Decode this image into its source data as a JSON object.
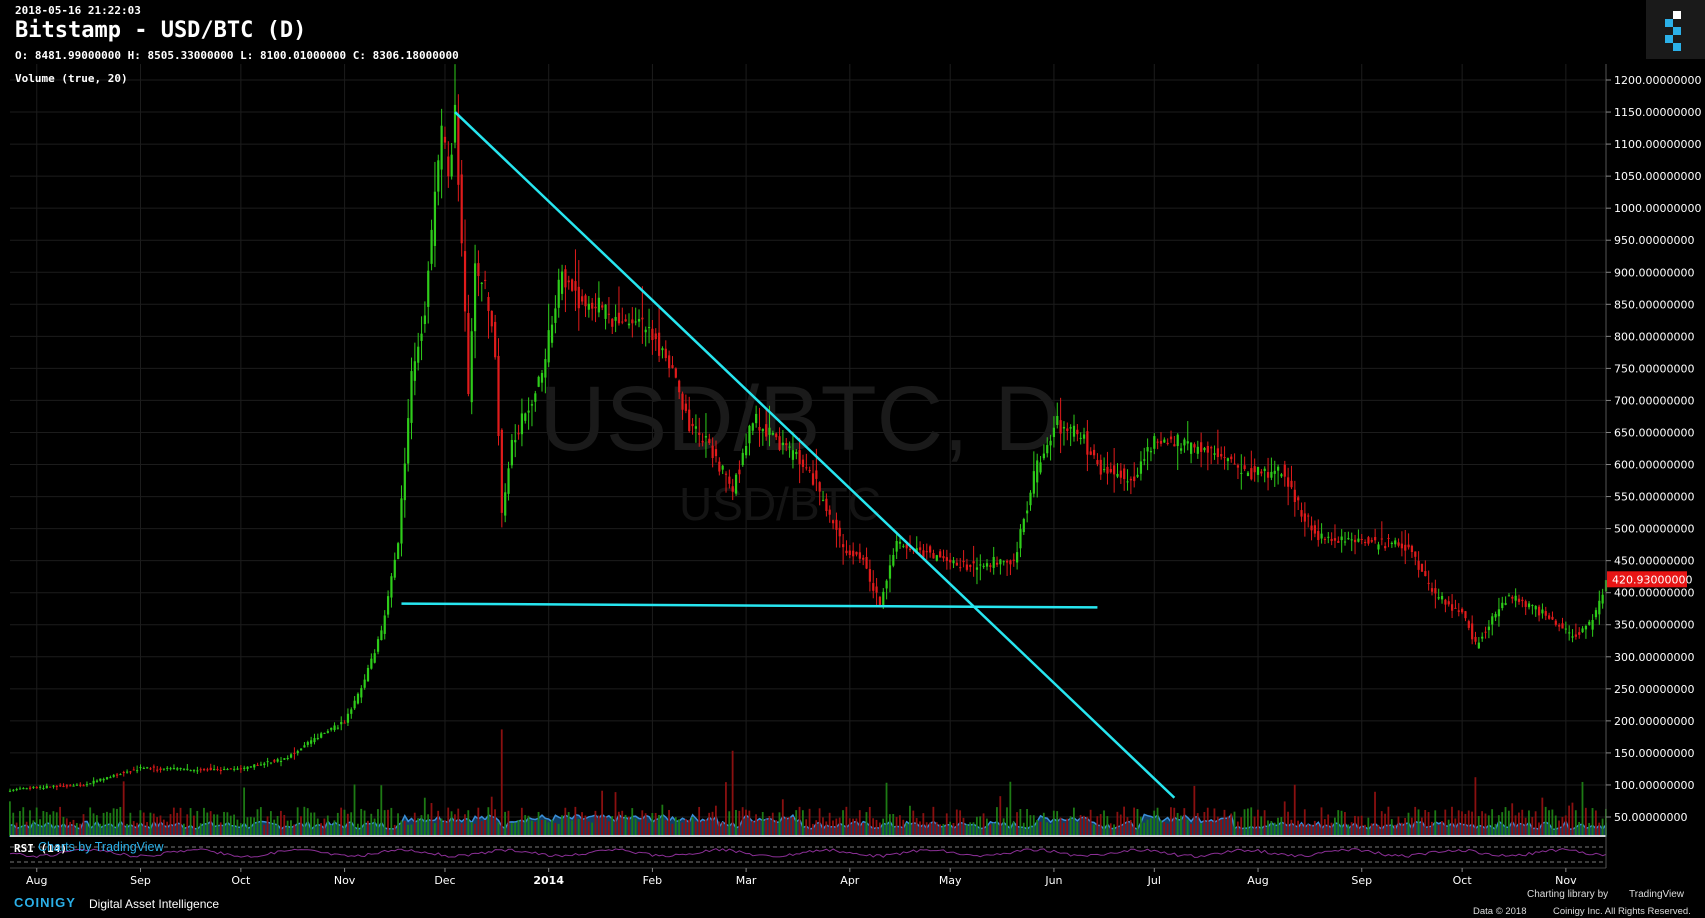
{
  "header": {
    "timestamp": "2018-05-16 21:22:03",
    "title": "Bitstamp - USD/BTC (D)",
    "ohlc": "O: 8481.99000000 H: 8505.33000000 L: 8100.01000000 C: 8306.18000000",
    "volume_label": "Volume (true, 20)"
  },
  "watermark": {
    "main": "USD/BTC, D",
    "sub": "USD/BTC"
  },
  "rsi": {
    "label": "RSI (14)"
  },
  "footer": {
    "charts_by": "Charts by TradingView",
    "brand": "COINIGY",
    "tagline": "Digital Asset Intelligence",
    "charting_library_by": "Charting library by",
    "tradingview": "TradingView",
    "copyright_left": "Data © 2018",
    "copyright_right": "Coinigy Inc. All Rights Reserved."
  },
  "colors": {
    "up": "#2ecc1a",
    "down": "#e01b1b",
    "trendline": "#27e6f0",
    "volume_area": "#1f6fb5",
    "price_tag": "#e81515",
    "background": "#000000"
  },
  "chart_data": {
    "type": "candlestick",
    "title": "Bitstamp - USD/BTC (D)",
    "price_axis": {
      "ticks": [
        "1200.00000000",
        "1150.00000000",
        "1100.00000000",
        "1050.00000000",
        "1000.00000000",
        "950.00000000",
        "900.00000000",
        "850.00000000",
        "800.00000000",
        "750.00000000",
        "700.00000000",
        "650.00000000",
        "600.00000000",
        "550.00000000",
        "500.00000000",
        "450.00000000",
        "400.00000000",
        "350.00000000",
        "300.00000000",
        "250.00000000",
        "200.00000000",
        "150.00000000",
        "100.00000000",
        "50.00000000"
      ],
      "range": [
        50,
        1200
      ]
    },
    "last_price_tag": "420.93000000",
    "time_axis": {
      "ticks": [
        "Aug",
        "Sep",
        "Oct",
        "Nov",
        "Dec",
        "2014",
        "Feb",
        "Mar",
        "Apr",
        "May",
        "Jun",
        "Jul",
        "Aug",
        "Sep",
        "Oct",
        "Nov"
      ],
      "range": [
        "2013-07-24",
        "2014-11-13"
      ]
    },
    "closes": [
      {
        "date": "2013-07-24",
        "close": 92
      },
      {
        "date": "2013-08-01",
        "close": 96
      },
      {
        "date": "2013-08-15",
        "close": 100
      },
      {
        "date": "2013-09-01",
        "close": 127
      },
      {
        "date": "2013-09-15",
        "close": 124
      },
      {
        "date": "2013-10-01",
        "close": 125
      },
      {
        "date": "2013-10-15",
        "close": 143
      },
      {
        "date": "2013-10-25",
        "close": 180
      },
      {
        "date": "2013-11-01",
        "close": 198
      },
      {
        "date": "2013-11-06",
        "close": 250
      },
      {
        "date": "2013-11-12",
        "close": 340
      },
      {
        "date": "2013-11-17",
        "close": 480
      },
      {
        "date": "2013-11-21",
        "close": 740
      },
      {
        "date": "2013-11-25",
        "close": 840
      },
      {
        "date": "2013-11-28",
        "close": 1020
      },
      {
        "date": "2013-11-30",
        "close": 1120
      },
      {
        "date": "2013-12-02",
        "close": 1050
      },
      {
        "date": "2013-12-04",
        "close": 1140
      },
      {
        "date": "2013-12-06",
        "close": 950
      },
      {
        "date": "2013-12-08",
        "close": 700
      },
      {
        "date": "2013-12-10",
        "close": 900
      },
      {
        "date": "2013-12-13",
        "close": 880
      },
      {
        "date": "2013-12-16",
        "close": 780
      },
      {
        "date": "2013-12-18",
        "close": 520
      },
      {
        "date": "2013-12-21",
        "close": 630
      },
      {
        "date": "2013-12-25",
        "close": 680
      },
      {
        "date": "2013-12-30",
        "close": 740
      },
      {
        "date": "2014-01-05",
        "close": 900
      },
      {
        "date": "2014-01-10",
        "close": 860
      },
      {
        "date": "2014-01-20",
        "close": 830
      },
      {
        "date": "2014-01-31",
        "close": 810
      },
      {
        "date": "2014-02-06",
        "close": 760
      },
      {
        "date": "2014-02-12",
        "close": 660
      },
      {
        "date": "2014-02-18",
        "close": 630
      },
      {
        "date": "2014-02-25",
        "close": 560
      },
      {
        "date": "2014-03-03",
        "close": 670
      },
      {
        "date": "2014-03-10",
        "close": 640
      },
      {
        "date": "2014-03-20",
        "close": 590
      },
      {
        "date": "2014-03-30",
        "close": 470
      },
      {
        "date": "2014-04-05",
        "close": 450
      },
      {
        "date": "2014-04-10",
        "close": 380
      },
      {
        "date": "2014-04-15",
        "close": 480
      },
      {
        "date": "2014-04-25",
        "close": 460
      },
      {
        "date": "2014-05-05",
        "close": 440
      },
      {
        "date": "2014-05-20",
        "close": 450
      },
      {
        "date": "2014-05-26",
        "close": 580
      },
      {
        "date": "2014-06-02",
        "close": 665
      },
      {
        "date": "2014-06-10",
        "close": 640
      },
      {
        "date": "2014-06-15",
        "close": 590
      },
      {
        "date": "2014-06-25",
        "close": 580
      },
      {
        "date": "2014-07-01",
        "close": 640
      },
      {
        "date": "2014-07-15",
        "close": 625
      },
      {
        "date": "2014-07-31",
        "close": 585
      },
      {
        "date": "2014-08-08",
        "close": 590
      },
      {
        "date": "2014-08-18",
        "close": 490
      },
      {
        "date": "2014-08-31",
        "close": 480
      },
      {
        "date": "2014-09-15",
        "close": 475
      },
      {
        "date": "2014-09-22",
        "close": 400
      },
      {
        "date": "2014-10-01",
        "close": 370
      },
      {
        "date": "2014-10-05",
        "close": 320
      },
      {
        "date": "2014-10-10",
        "close": 360
      },
      {
        "date": "2014-10-15",
        "close": 395
      },
      {
        "date": "2014-10-25",
        "close": 370
      },
      {
        "date": "2014-11-03",
        "close": 330
      },
      {
        "date": "2014-11-08",
        "close": 350
      },
      {
        "date": "2014-11-11",
        "close": 380
      },
      {
        "date": "2014-11-13",
        "close": 421
      }
    ],
    "volume_peaks": [
      {
        "date": "2013-10-02",
        "volume": 132
      },
      {
        "date": "2013-12-18",
        "volume": 290
      },
      {
        "date": "2014-02-25",
        "volume": 232
      },
      {
        "date": "2014-10-05",
        "volume": 160
      }
    ],
    "trendlines": [
      {
        "name": "descending",
        "from": {
          "date": "2013-12-04",
          "price": 1150
        },
        "to": {
          "date": "2014-07-07",
          "price": 80
        }
      },
      {
        "name": "support",
        "from": {
          "date": "2013-11-18",
          "price": 383
        },
        "to": {
          "date": "2014-06-14",
          "price": 377
        }
      }
    ]
  }
}
